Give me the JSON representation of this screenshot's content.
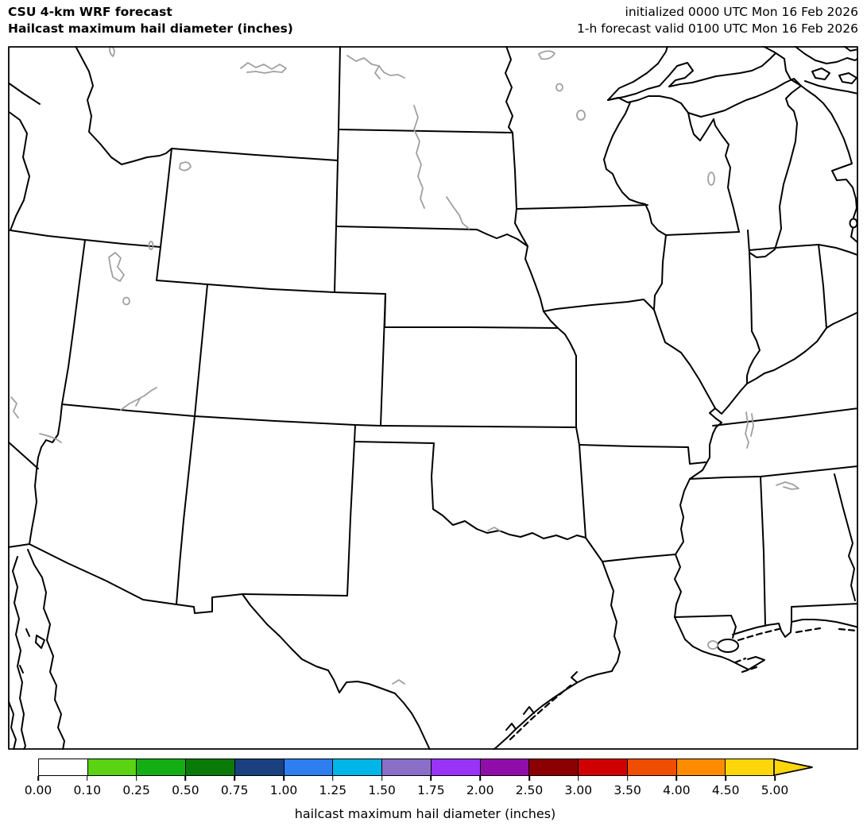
{
  "header": {
    "title_line1": "CSU 4-km WRF forecast",
    "title_line2": "Hailcast maximum hail diameter (inches)",
    "init_line": "initialized 0000 UTC Mon 16 Feb 2026",
    "valid_line": "1-h forecast valid 0100 UTC Mon 16 Feb 2026"
  },
  "map": {
    "region": "Central United States state outlines with rivers and lakes",
    "border_color": "#000000",
    "water_color": "#a0a0a0"
  },
  "colorbar": {
    "label": "hailcast maximum hail diameter (inches)",
    "levels": [
      "0.00",
      "0.10",
      "0.25",
      "0.50",
      "0.75",
      "1.00",
      "1.25",
      "1.50",
      "1.75",
      "2.00",
      "2.50",
      "3.00",
      "3.50",
      "4.00",
      "4.50",
      "5.00"
    ],
    "colors": [
      "#ffffff",
      "#5bd313",
      "#14ae14",
      "#0a7a0a",
      "#1a4080",
      "#2e7ef0",
      "#00b6e8",
      "#8a6fc9",
      "#9933f5",
      "#8f0da8",
      "#8b0000",
      "#d10000",
      "#ef4e00",
      "#ff8c00",
      "#ffd60a"
    ],
    "extend_color": "#ffd60a"
  },
  "chart_data": {
    "type": "heatmap",
    "title": "Hailcast maximum hail diameter (inches)",
    "colorbar_levels": [
      0.0,
      0.1,
      0.25,
      0.5,
      0.75,
      1.0,
      1.25,
      1.5,
      1.75,
      2.0,
      2.5,
      3.0,
      3.5,
      4.0,
      4.5,
      5.0
    ],
    "values_plotted": "none visible (no hail shaded on map at this forecast hour)"
  }
}
